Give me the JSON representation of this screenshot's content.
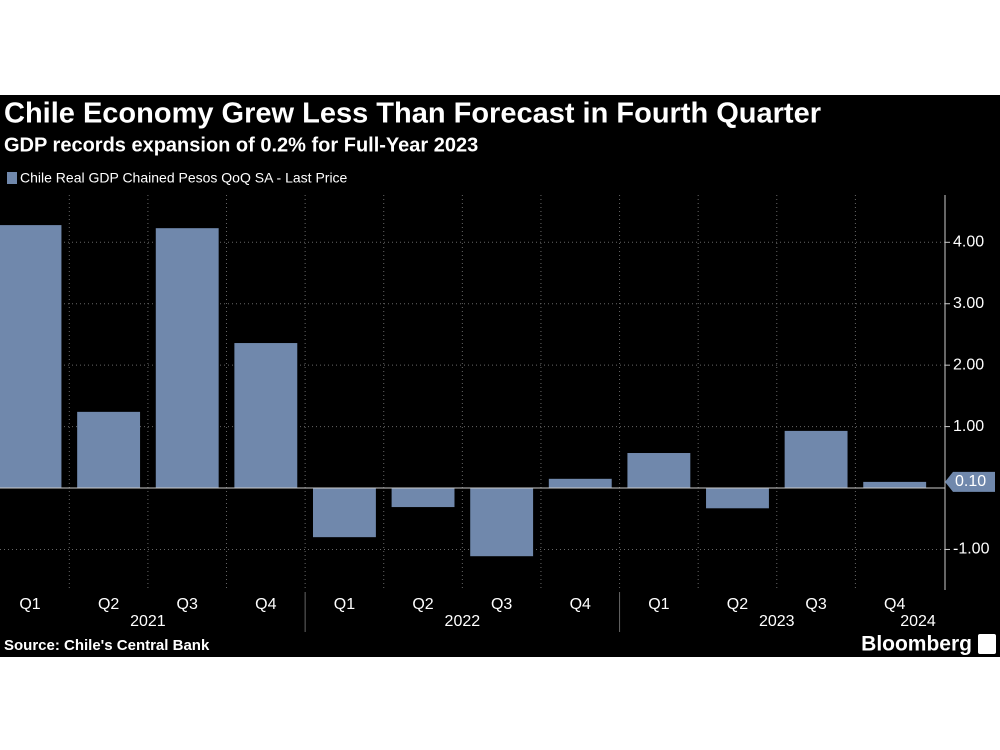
{
  "chart_data": {
    "type": "bar",
    "title": "Chile Economy Grew Less Than Forecast in Fourth Quarter",
    "subtitle": "GDP records expansion of 0.2% for Full-Year 2023",
    "series": [
      {
        "name": "Chile Real GDP Chained Pesos QoQ SA - Last Price",
        "color": "#7088ac",
        "values": [
          4.28,
          1.24,
          4.23,
          2.36,
          -0.8,
          -0.31,
          -1.11,
          0.15,
          0.57,
          -0.33,
          0.93,
          0.1
        ],
        "last_value_label": "0.10"
      }
    ],
    "categories": [
      "Q1",
      "Q2",
      "Q3",
      "Q4",
      "Q1",
      "Q2",
      "Q3",
      "Q4",
      "Q1",
      "Q2",
      "Q3",
      "Q4"
    ],
    "years": [
      "2021",
      "2022",
      "2023",
      "2024"
    ],
    "ylim": [
      -1.66,
      4.77
    ],
    "yticks": [
      {
        "value": -1,
        "label": "-1.00"
      },
      {
        "value": 1,
        "label": "1.00"
      },
      {
        "value": 2,
        "label": "2.00"
      },
      {
        "value": 3,
        "label": "3.00"
      },
      {
        "value": 4,
        "label": "4.00"
      }
    ],
    "grid": true,
    "source": "Source: Chile's Central Bank",
    "brand": "Bloomberg"
  }
}
